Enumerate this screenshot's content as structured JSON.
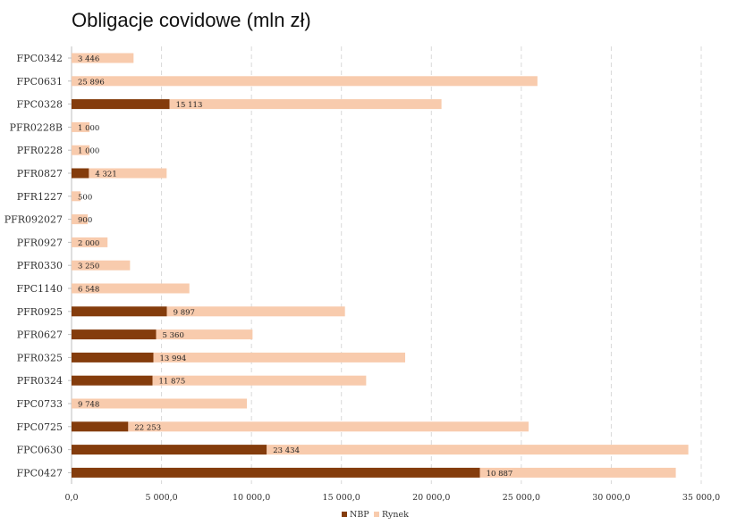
{
  "chart_data": {
    "type": "bar",
    "orientation": "horizontal",
    "stacked": true,
    "title": "Obligacje covidowe (mln zł)",
    "categories": [
      "FPC0342",
      "FPC0631",
      "FPC0328",
      "PFR0228B",
      "PFR0228",
      "PFR0827",
      "PFR1227",
      "PFR092027",
      "PFR0927",
      "PFR0330",
      "FPC1140",
      "PFR0925",
      "PFR0627",
      "PFR0325",
      "PFR0324",
      "FPC0733",
      "FPC0725",
      "FPC0630",
      "FPC0427"
    ],
    "series": [
      {
        "name": "NBP",
        "color": "#843C0C",
        "values": [
          0,
          0,
          5450,
          0,
          0,
          965,
          0,
          0,
          0,
          0,
          0,
          5300,
          4700,
          4550,
          4500,
          0,
          3150,
          10850,
          22700
        ]
      },
      {
        "name": "Rynek",
        "color": "#F8CBAD",
        "values": [
          3446,
          25896,
          15113,
          1000,
          1000,
          4321,
          500,
          900,
          2000,
          3250,
          6548,
          9897,
          5360,
          13994,
          11875,
          9748,
          22253,
          23434,
          10887
        ]
      }
    ],
    "data_labels": [
      "3 446",
      "25 896",
      "15 113",
      "1 000",
      "1 000",
      "4 321",
      "500",
      "900",
      "2 000",
      "3 250",
      "6 548",
      "9 897",
      "5 360",
      "13 994",
      "11 875",
      "9 748",
      "22 253",
      "23 434",
      "10 887"
    ],
    "xlim": [
      0,
      35000
    ],
    "x_ticks": [
      0,
      5000,
      10000,
      15000,
      20000,
      25000,
      30000,
      35000
    ],
    "x_tick_labels": [
      "0,0",
      "5 000,0",
      "10 000,0",
      "15 000,0",
      "20 000,0",
      "25 000,0",
      "30 000,0",
      "35 000,0"
    ],
    "grid": "vertical dashed",
    "legend_position": "bottom",
    "xlabel": "",
    "ylabel": ""
  }
}
